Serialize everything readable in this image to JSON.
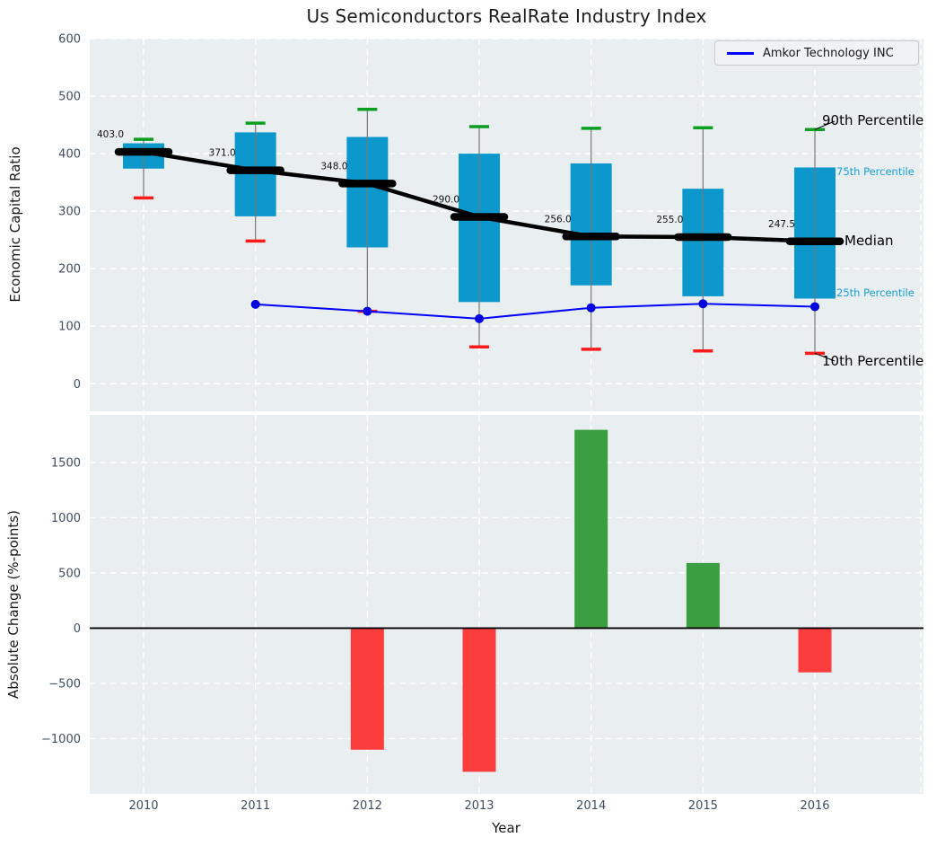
{
  "title": "Us Semiconductors RealRate Industry Index",
  "legend": {
    "label": "Amkor Technology INC"
  },
  "colors": {
    "axes_bg": "#e9eef1",
    "grid": "#ffffff",
    "box_fill": "#0c98cc",
    "whisker": "#777777",
    "cap_high": "#0b9e20",
    "cap_low": "#ff1a1a",
    "median_line": "#000000",
    "company_line": "#0000ff",
    "company_marker": "#0000e0",
    "bar_pos": "#3b9e41",
    "bar_neg": "#fb3d3d",
    "tick_label": "#3d4d61",
    "pct_label_blue": "#17a0d4",
    "annotation_black": "#000000",
    "value_label": "#111111",
    "zero_line": "#000000"
  },
  "chart_data": [
    {
      "type": "boxplot",
      "title": "Us Semiconductors RealRate Industry Index",
      "ylabel": "Economic Capital Ratio",
      "ylim": [
        -48,
        600
      ],
      "yticks": [
        0,
        100,
        200,
        300,
        400,
        500,
        600
      ],
      "grid": "white dashed on light gray-blue background",
      "legend_position": "upper right",
      "categories": [
        "2010",
        "2011",
        "2012",
        "2013",
        "2014",
        "2015",
        "2016"
      ],
      "series": [
        {
          "name": "90th Percentile",
          "values": [
            425,
            453,
            477,
            447,
            444,
            445,
            442
          ]
        },
        {
          "name": "75th Percentile",
          "values": [
            418,
            437,
            429,
            400,
            383,
            339,
            376
          ]
        },
        {
          "name": "Median",
          "values": [
            403,
            371,
            348,
            290,
            256,
            255,
            247.5
          ]
        },
        {
          "name": "25th Percentile",
          "values": [
            374,
            291,
            237,
            142,
            171,
            152,
            148
          ]
        },
        {
          "name": "10th Percentile",
          "values": [
            323,
            248,
            126,
            64,
            60,
            57,
            53
          ]
        },
        {
          "name": "Amkor Technology INC",
          "values": [
            null,
            138,
            126,
            113,
            132,
            139,
            134
          ]
        }
      ],
      "median_labels": [
        "403.0",
        "371.0",
        "348.0",
        "290.0",
        "256.0",
        "255.0",
        "247.5"
      ],
      "annotations": [
        "90th Percentile",
        "75th Percentile",
        "Median",
        "25th Percentile",
        "10th Percentile"
      ]
    },
    {
      "type": "bar",
      "ylabel": "Absolute Change (%-points)",
      "xlabel": "Year",
      "ylim": [
        -1500,
        1930
      ],
      "yticks": [
        -1000,
        -500,
        0,
        500,
        1000,
        1500
      ],
      "ytick_labels": [
        "−1000",
        "−500",
        "0",
        "500",
        "1000",
        "1500"
      ],
      "categories": [
        "2010",
        "2011",
        "2012",
        "2013",
        "2014",
        "2015",
        "2016"
      ],
      "values": [
        null,
        null,
        -1100,
        -1300,
        1795,
        590,
        -400
      ]
    }
  ]
}
